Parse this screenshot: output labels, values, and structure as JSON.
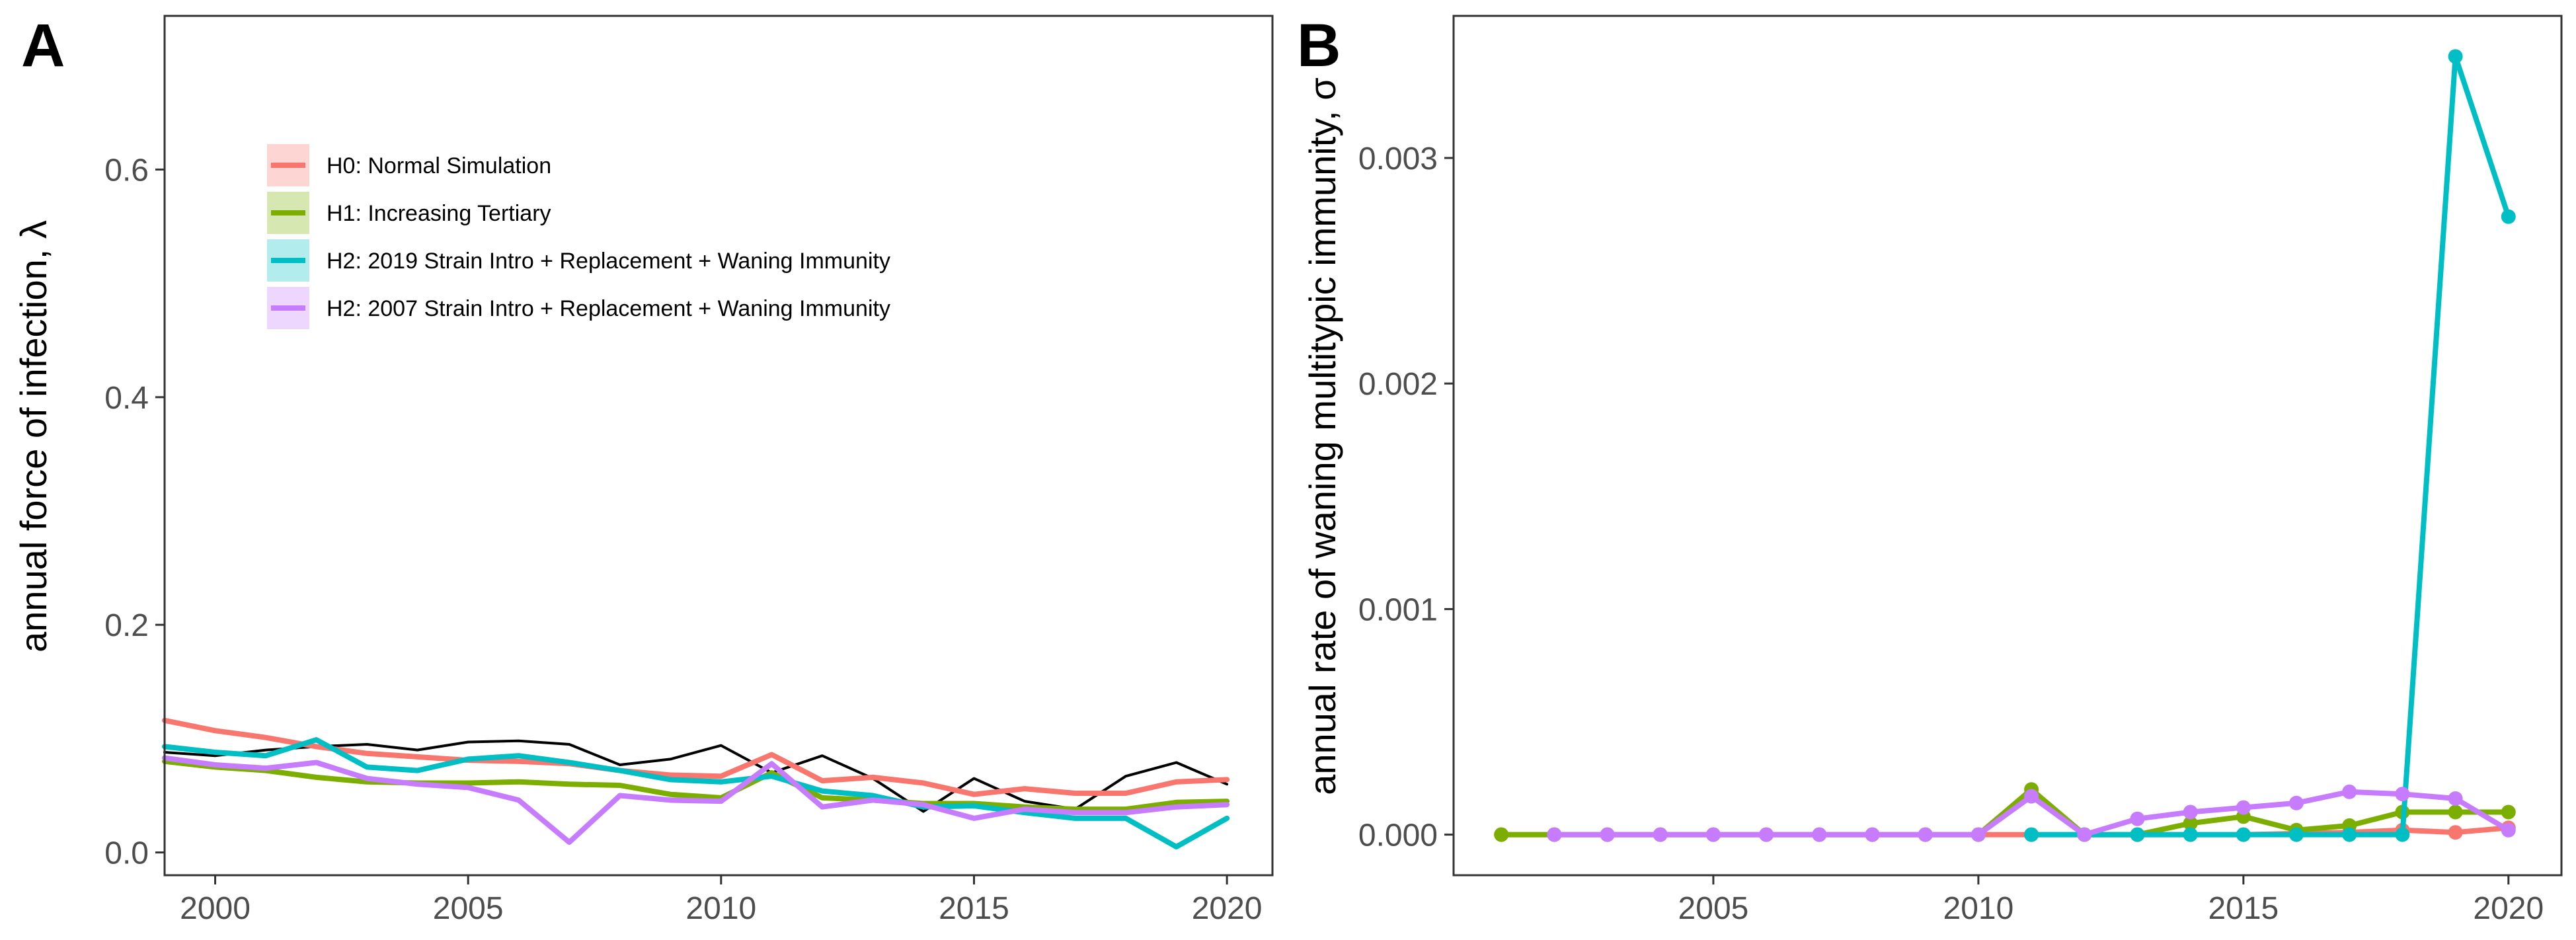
{
  "chart_data": [
    {
      "type": "line",
      "panel_label": "A",
      "title": "",
      "xlabel": "",
      "ylabel": "annual force of infection, λ",
      "xlim": [
        1999,
        2020.9
      ],
      "ylim": [
        -0.02,
        0.735
      ],
      "xticks": [
        2000,
        2005,
        2010,
        2015,
        2020
      ],
      "yticks": [
        0.0,
        0.2,
        0.4,
        0.6
      ],
      "ytick_labels": [
        "0.0",
        "0.2",
        "0.4",
        "0.6"
      ],
      "grid": false,
      "legend_position": "top-left",
      "series": [
        {
          "name": "",
          "color": "#000000",
          "x": [
            1999,
            2000,
            2001,
            2002,
            2003,
            2004,
            2005,
            2006,
            2007,
            2008,
            2009,
            2010,
            2011,
            2012,
            2013,
            2014,
            2015,
            2016,
            2017,
            2018,
            2019,
            2020
          ],
          "values": [
            0.088,
            0.085,
            0.09,
            0.093,
            0.095,
            0.09,
            0.097,
            0.098,
            0.095,
            0.077,
            0.082,
            0.094,
            0.07,
            0.085,
            0.065,
            0.036,
            0.065,
            0.045,
            0.038,
            0.067,
            0.079,
            0.06
          ]
        },
        {
          "name": "H0: Normal Simulation",
          "color": "#F8766D",
          "x": [
            1999,
            2000,
            2001,
            2002,
            2003,
            2004,
            2005,
            2006,
            2007,
            2008,
            2009,
            2010,
            2011,
            2012,
            2013,
            2014,
            2015,
            2016,
            2017,
            2018,
            2019,
            2020
          ],
          "values": [
            0.116,
            0.107,
            0.101,
            0.093,
            0.087,
            0.084,
            0.081,
            0.08,
            0.078,
            0.072,
            0.068,
            0.067,
            0.086,
            0.063,
            0.066,
            0.061,
            0.051,
            0.056,
            0.052,
            0.052,
            0.062,
            0.064
          ]
        },
        {
          "name": "H1: Increasing Tertiary",
          "color": "#7CAE00",
          "x": [
            1999,
            2000,
            2001,
            2002,
            2003,
            2004,
            2005,
            2006,
            2007,
            2008,
            2009,
            2010,
            2011,
            2012,
            2013,
            2014,
            2015,
            2016,
            2017,
            2018,
            2019,
            2020
          ],
          "values": [
            0.08,
            0.075,
            0.072,
            0.066,
            0.062,
            0.061,
            0.061,
            0.062,
            0.06,
            0.059,
            0.051,
            0.048,
            0.07,
            0.048,
            0.046,
            0.043,
            0.043,
            0.04,
            0.038,
            0.038,
            0.044,
            0.045
          ]
        },
        {
          "name": "H2: 2019 Strain Intro + Replacement + Waning Immunity",
          "color": "#00BFC4",
          "x": [
            1999,
            2000,
            2001,
            2002,
            2003,
            2004,
            2005,
            2006,
            2007,
            2008,
            2009,
            2010,
            2011,
            2012,
            2013,
            2014,
            2015,
            2016,
            2017,
            2018,
            2019,
            2020
          ],
          "values": [
            0.093,
            0.088,
            0.085,
            0.099,
            0.075,
            0.072,
            0.082,
            0.085,
            0.079,
            0.072,
            0.064,
            0.062,
            0.067,
            0.054,
            0.05,
            0.04,
            0.041,
            0.035,
            0.03,
            0.03,
            0.005,
            0.03
          ]
        },
        {
          "name": "H2: 2007 Strain Intro + Replacement + Waning Immunity",
          "color": "#C77CFF",
          "x": [
            1999,
            2000,
            2001,
            2002,
            2003,
            2004,
            2005,
            2006,
            2007,
            2008,
            2009,
            2010,
            2011,
            2012,
            2013,
            2014,
            2015,
            2016,
            2017,
            2018,
            2019,
            2020
          ],
          "values": [
            0.083,
            0.077,
            0.074,
            0.079,
            0.065,
            0.06,
            0.057,
            0.046,
            0.009,
            0.05,
            0.046,
            0.045,
            0.078,
            0.04,
            0.046,
            0.042,
            0.03,
            0.038,
            0.035,
            0.035,
            0.04,
            0.042
          ]
        }
      ]
    },
    {
      "type": "line",
      "panel_label": "B",
      "title": "",
      "xlabel": "",
      "ylabel": "annual rate of waning multitypic immunity, σ",
      "xlim": [
        2000.1,
        2021.0
      ],
      "ylim": [
        -0.00018,
        0.00363
      ],
      "xticks": [
        2005,
        2010,
        2015,
        2020
      ],
      "yticks": [
        0.0,
        0.001,
        0.002,
        0.003
      ],
      "ytick_labels": [
        "0.000",
        "0.001",
        "0.002",
        "0.003"
      ],
      "grid": false,
      "markers": true,
      "series": [
        {
          "name": "H0: Normal Simulation",
          "color": "#F8766D",
          "x": [
            2001,
            2002,
            2003,
            2004,
            2005,
            2006,
            2007,
            2008,
            2009,
            2010,
            2011,
            2012,
            2013,
            2014,
            2015,
            2016,
            2017,
            2018,
            2019,
            2020
          ],
          "values": [
            0,
            0,
            0,
            0,
            0,
            0,
            0,
            0,
            0,
            0,
            0,
            0,
            0,
            0,
            0,
            5e-06,
            1e-05,
            2e-05,
            1e-05,
            3e-05
          ]
        },
        {
          "name": "H1: Increasing Tertiary",
          "color": "#7CAE00",
          "x": [
            2001,
            2002,
            2003,
            2004,
            2005,
            2006,
            2007,
            2008,
            2009,
            2010,
            2011,
            2012,
            2013,
            2014,
            2015,
            2016,
            2017,
            2018,
            2019,
            2020
          ],
          "values": [
            0,
            0,
            0,
            0,
            0,
            0,
            0,
            0,
            0,
            0,
            0.0002,
            0,
            0,
            5e-05,
            8e-05,
            2e-05,
            4e-05,
            0.0001,
            0.0001,
            0.0001
          ]
        },
        {
          "name": "H2: 2019 Strain Intro + Replacement + Waning Immunity",
          "color": "#00BFC4",
          "x": [
            2011,
            2012,
            2013,
            2014,
            2015,
            2016,
            2017,
            2018,
            2019,
            2020
          ],
          "values": [
            0,
            0,
            0,
            0,
            0,
            0,
            0,
            0,
            0.00345,
            0.00274
          ]
        },
        {
          "name": "H2: 2007 Strain Intro + Replacement + Waning Immunity",
          "color": "#C77CFF",
          "x": [
            2002,
            2003,
            2004,
            2005,
            2006,
            2007,
            2008,
            2009,
            2010,
            2011,
            2012,
            2013,
            2014,
            2015,
            2016,
            2017,
            2018,
            2019,
            2020
          ],
          "values": [
            0,
            0,
            0,
            0,
            0,
            0,
            0,
            0,
            0,
            0.00017,
            0,
            7e-05,
            0.0001,
            0.00012,
            0.00014,
            0.00019,
            0.00018,
            0.00016,
            2e-05
          ]
        }
      ]
    }
  ]
}
